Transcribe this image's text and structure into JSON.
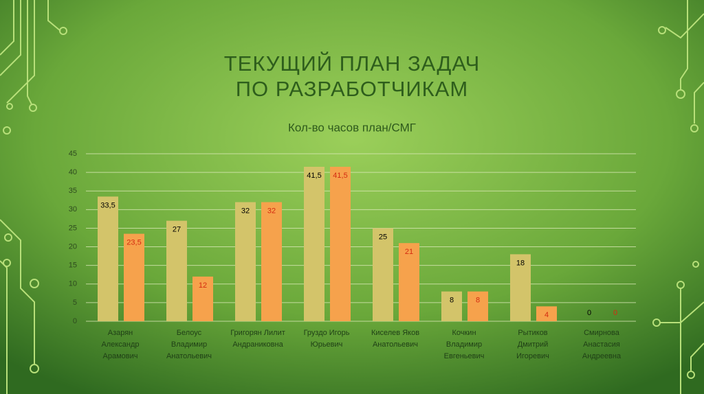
{
  "chart_data": {
    "type": "bar",
    "title": [
      "ТЕКУЩИЙ ПЛАН ЗАДАЧ",
      "ПО РАЗРАБОТЧИКАМ"
    ],
    "subtitle": "Кол-во часов план/СМГ",
    "categories": [
      [
        "Азарян",
        "Александр",
        "Арамович"
      ],
      [
        "Белоус",
        "Владимир",
        "Анатольевич"
      ],
      [
        "Григорян Лилит",
        "Андраниковна"
      ],
      [
        "Груздо Игорь",
        "Юрьевич"
      ],
      [
        "Киселев Яков",
        "Анатольевич"
      ],
      [
        "Кочкин",
        "Владимир",
        "Евгеньевич"
      ],
      [
        "Рытиков",
        "Дмитрий",
        "Игоревич"
      ],
      [
        "Смирнова",
        "Анастасия",
        "Андреевна"
      ]
    ],
    "series": [
      {
        "color": "#d3c46a",
        "label_color": "#000000",
        "values": [
          33.5,
          27,
          32,
          41.5,
          25,
          8,
          18,
          0
        ],
        "value_labels": [
          "33,5",
          "27",
          "32",
          "41,5",
          "25",
          "8",
          "18",
          "0"
        ]
      },
      {
        "color": "#f6a24c",
        "label_color": "#d42a10",
        "values": [
          23.5,
          12,
          32,
          41.5,
          21,
          8,
          4,
          0
        ],
        "value_labels": [
          "23,5",
          "12",
          "32",
          "41,5",
          "21",
          "8",
          "4",
          "0"
        ]
      }
    ],
    "ylim": [
      0,
      45
    ],
    "yticks": [
      0,
      5,
      10,
      15,
      20,
      25,
      30,
      35,
      40,
      45
    ],
    "grid": true
  }
}
